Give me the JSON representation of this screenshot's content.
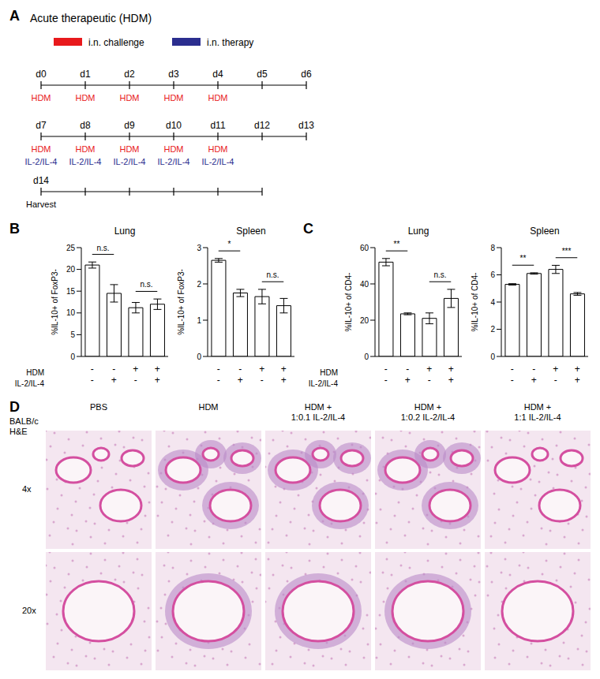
{
  "panel_labels": [
    "A",
    "B",
    "C",
    "D"
  ],
  "timeline": {
    "title": "Acute therapeutic (HDM)",
    "legend": [
      {
        "label": "i.n. challenge",
        "color": "#e8191c"
      },
      {
        "label": "i.n. therapy",
        "color": "#2b2e8f"
      }
    ],
    "rows": [
      {
        "days": [
          "d0",
          "d1",
          "d2",
          "d3",
          "d4",
          "d5",
          "d6"
        ],
        "lines": [
          {
            "color": "#e8191c",
            "labels": [
              "HDM",
              "HDM",
              "HDM",
              "HDM",
              "HDM",
              null,
              null
            ]
          }
        ]
      },
      {
        "days": [
          "d7",
          "d8",
          "d9",
          "d10",
          "d11",
          "d12",
          "d13"
        ],
        "lines": [
          {
            "color": "#e8191c",
            "labels": [
              "HDM",
              "HDM",
              "HDM",
              "HDM",
              "HDM",
              null,
              null
            ]
          },
          {
            "color": "#2b2e8f",
            "labels": [
              "IL-2/IL-4",
              "IL-2/IL-4",
              "IL-2/IL-4",
              "IL-2/IL-4",
              "IL-2/IL-4",
              null,
              null
            ]
          }
        ]
      },
      {
        "days": [
          "d14",
          null,
          null,
          null,
          null,
          null
        ],
        "lines": [
          {
            "color": "#000000",
            "labels": [
              "Harvest"
            ]
          }
        ]
      }
    ]
  },
  "condition_labels": [
    "HDM",
    "IL-2/IL-4"
  ],
  "chart_data": [
    {
      "type": "bar",
      "title": "Lung",
      "y_label": "%IL-10+ of FoxP3-",
      "values": [
        21,
        14.5,
        11.2,
        12
      ],
      "errors": [
        0.7,
        2,
        1.2,
        1.2
      ],
      "ylim": [
        0,
        25
      ],
      "yticks": [
        0,
        5,
        10,
        15,
        20,
        25
      ],
      "color": "#ffffff",
      "x_rows": [
        [
          "-",
          "-",
          "+",
          "+"
        ],
        [
          "-",
          "+",
          "-",
          "+"
        ]
      ],
      "significance": [
        {
          "bars": [
            0,
            1
          ],
          "label": "n.s."
        },
        {
          "bars": [
            2,
            3
          ],
          "label": "n.s."
        }
      ]
    },
    {
      "type": "bar",
      "title": "Spleen",
      "y_label": "%IL-10+ of FoxP3-",
      "values": [
        2.65,
        1.75,
        1.65,
        1.4
      ],
      "errors": [
        0.05,
        0.1,
        0.2,
        0.2
      ],
      "ylim": [
        0,
        3
      ],
      "yticks": [
        0,
        1,
        2,
        3
      ],
      "color": "#ffffff",
      "x_rows": [
        [
          "-",
          "-",
          "+",
          "+"
        ],
        [
          "-",
          "+",
          "-",
          "+"
        ]
      ],
      "significance": [
        {
          "bars": [
            0,
            1
          ],
          "label": "*"
        },
        {
          "bars": [
            2,
            3
          ],
          "label": "n.s."
        }
      ]
    },
    {
      "type": "bar",
      "title": "Lung",
      "y_label": "%IL-10+ of CD4-",
      "values": [
        52,
        23.5,
        21,
        32
      ],
      "errors": [
        2,
        0.5,
        3,
        5
      ],
      "ylim": [
        0,
        60
      ],
      "yticks": [
        0,
        20,
        40,
        60
      ],
      "color": "#ffffff",
      "x_rows": [
        [
          "-",
          "-",
          "+",
          "+"
        ],
        [
          "-",
          "+",
          "-",
          "+"
        ]
      ],
      "significance": [
        {
          "bars": [
            0,
            1
          ],
          "label": "**"
        },
        {
          "bars": [
            2,
            3
          ],
          "label": "n.s."
        }
      ]
    },
    {
      "type": "bar",
      "title": "Spleen",
      "y_label": "%IL-10+ of CD4-",
      "values": [
        5.3,
        6.1,
        6.4,
        4.6
      ],
      "errors": [
        0.05,
        0.05,
        0.3,
        0.1
      ],
      "ylim": [
        0,
        8
      ],
      "yticks": [
        0,
        2,
        4,
        6,
        8
      ],
      "color": "#ffffff",
      "x_rows": [
        [
          "-",
          "-",
          "+",
          "+"
        ],
        [
          "-",
          "+",
          "-",
          "+"
        ]
      ],
      "significance": [
        {
          "bars": [
            0,
            1
          ],
          "label": "**"
        },
        {
          "bars": [
            2,
            3
          ],
          "label": "***"
        }
      ]
    }
  ],
  "histology": {
    "strain_label": [
      "BALB/c",
      "H&E"
    ],
    "columns": [
      [
        "PBS"
      ],
      [
        "HDM"
      ],
      [
        "HDM +",
        "1:0.1 IL-2/IL-4"
      ],
      [
        "HDM +",
        "1:0.2 IL-2/IL-4"
      ],
      [
        "HDM +",
        "1:1 IL-2/IL-4"
      ]
    ],
    "rows": [
      "4x",
      "20x"
    ]
  }
}
